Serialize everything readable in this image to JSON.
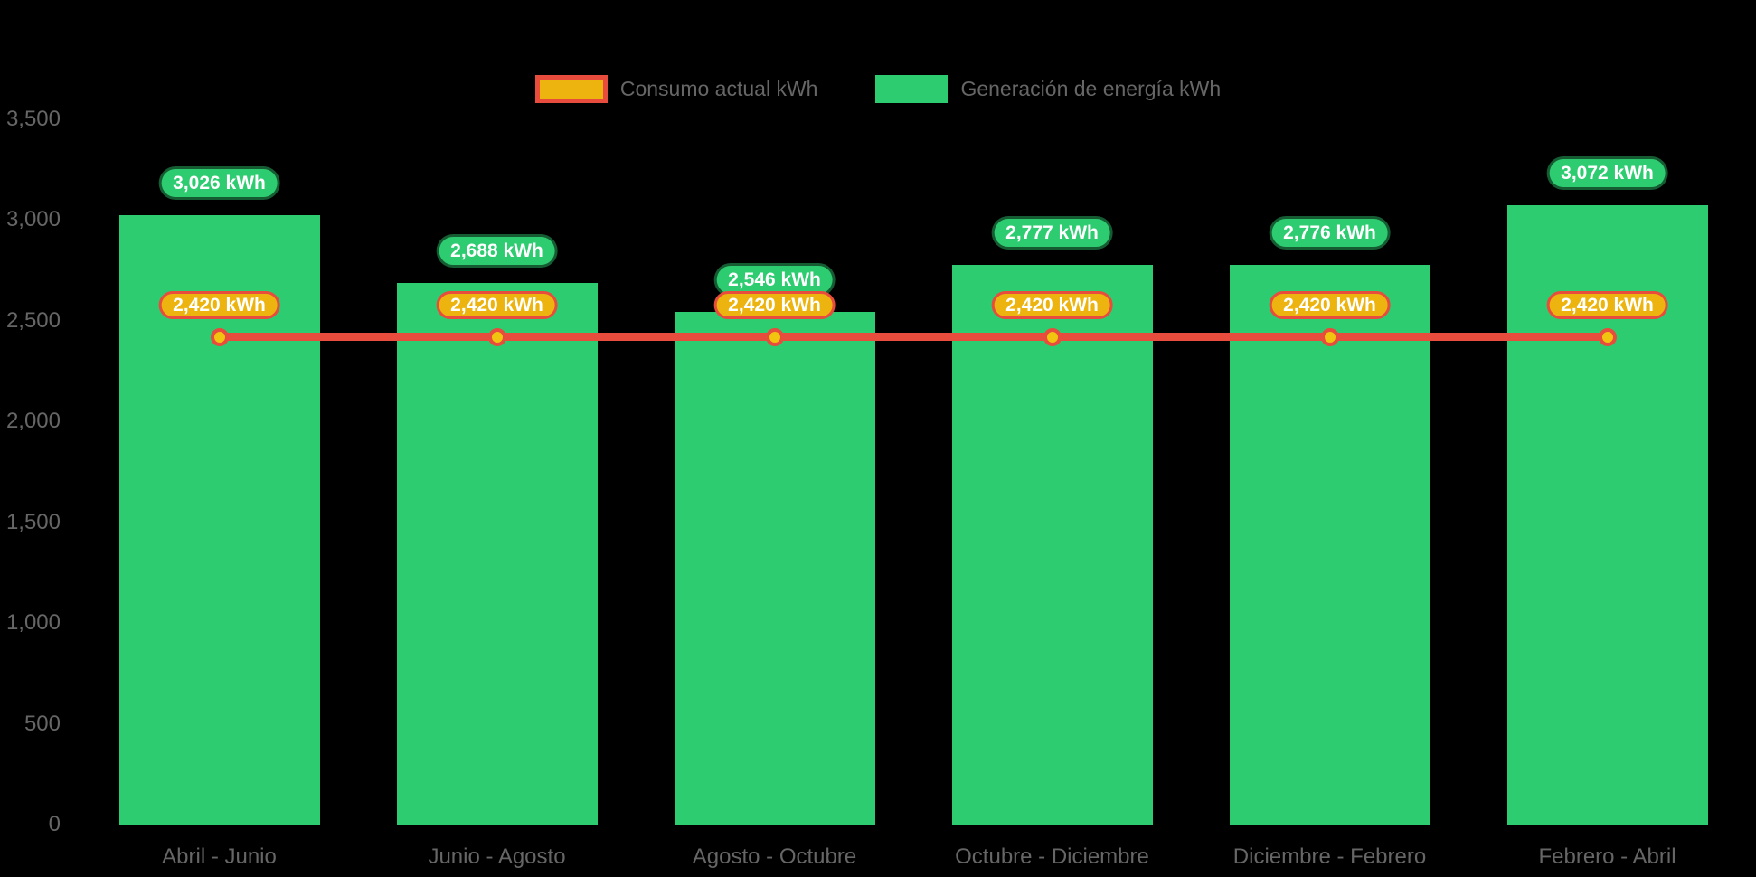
{
  "colors": {
    "background": "#000000",
    "bar_green": "#2ECC71",
    "line_red": "#E74C3C",
    "pill_gold": "#EDB30E",
    "marker_gold": "#F1C40F",
    "label_text": "#FFFFFF",
    "axis_text": "#666666"
  },
  "chart_data": {
    "type": "bar+line",
    "categories": [
      "Abril - Junio",
      "Junio - Agosto",
      "Agosto - Octubre",
      "Octubre - Diciembre",
      "Diciembre - Febrero",
      "Febrero - Abril"
    ],
    "series": [
      {
        "name": "Consumo actual kWh",
        "type": "line",
        "color": "#E74C3C",
        "marker_color": "#F1C40F",
        "values": [
          2420,
          2420,
          2420,
          2420,
          2420,
          2420
        ],
        "labels": [
          "2,420 kWh",
          "2,420 kWh",
          "2,420 kWh",
          "2,420 kWh",
          "2,420 kWh",
          "2,420 kWh"
        ]
      },
      {
        "name": "Generación de energía kWh",
        "type": "bar",
        "color": "#2ECC71",
        "values": [
          3026,
          2688,
          2546,
          2777,
          2776,
          3072
        ],
        "labels": [
          "3,026 kWh",
          "2,688 kWh",
          "2,546 kWh",
          "2,777 kWh",
          "2,776 kWh",
          "3,072 kWh"
        ]
      }
    ],
    "ylim": [
      0,
      3500
    ],
    "yticks": [
      0,
      500,
      1000,
      1500,
      2000,
      2500,
      3000,
      3500
    ],
    "ytick_labels": [
      "0",
      "500",
      "1,000",
      "1,500",
      "2,000",
      "2,500",
      "3,000",
      "3,500"
    ],
    "grid": false,
    "legend_position": "top-center"
  }
}
